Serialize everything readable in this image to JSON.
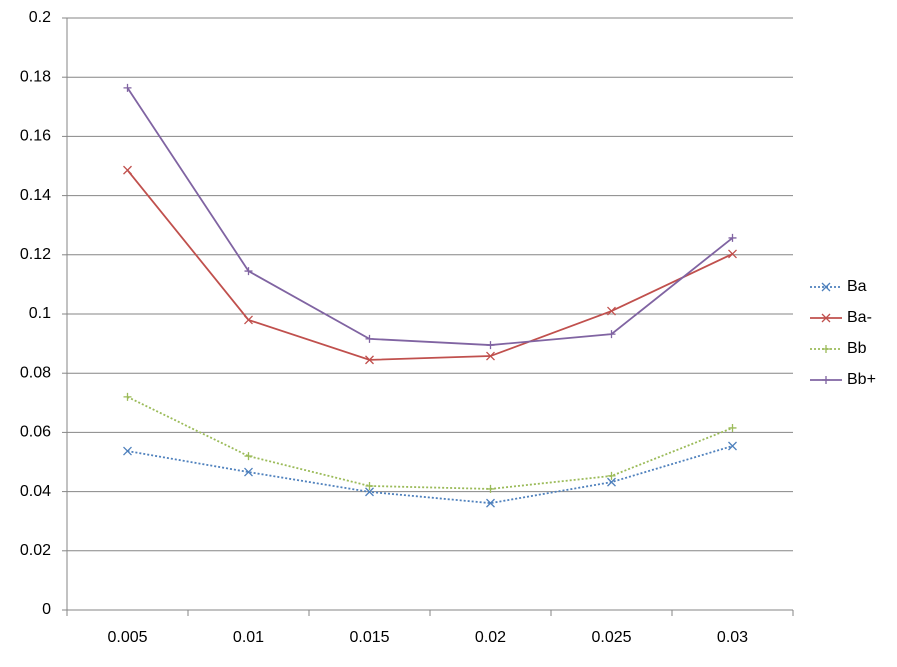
{
  "chart_data": {
    "type": "line",
    "categories": [
      "0.005",
      "0.01",
      "0.015",
      "0.02",
      "0.025",
      "0.03"
    ],
    "series": [
      {
        "name": "Ba",
        "color": "#4f81bd",
        "dashed": true,
        "marker": "x",
        "values": [
          0.0537,
          0.0466,
          0.0399,
          0.0361,
          0.0432,
          0.0554
        ]
      },
      {
        "name": "Ba-",
        "color": "#c0504d",
        "dashed": false,
        "marker": "x",
        "values": [
          0.1486,
          0.098,
          0.0845,
          0.0858,
          0.101,
          0.1203
        ]
      },
      {
        "name": "Bb",
        "color": "#9bbb59",
        "dashed": true,
        "marker": "+",
        "values": [
          0.072,
          0.052,
          0.0419,
          0.0409,
          0.0453,
          0.0615
        ]
      },
      {
        "name": "Bb+",
        "color": "#8064a2",
        "dashed": false,
        "marker": "+",
        "values": [
          0.1764,
          0.1145,
          0.0916,
          0.0895,
          0.0932,
          0.1257
        ]
      }
    ],
    "ylim": [
      0,
      0.2
    ],
    "yticks": [
      0,
      0.02,
      0.04,
      0.06,
      0.08,
      0.1,
      0.12,
      0.14,
      0.16,
      0.18,
      0.2
    ],
    "grid": true,
    "legend": "right"
  }
}
